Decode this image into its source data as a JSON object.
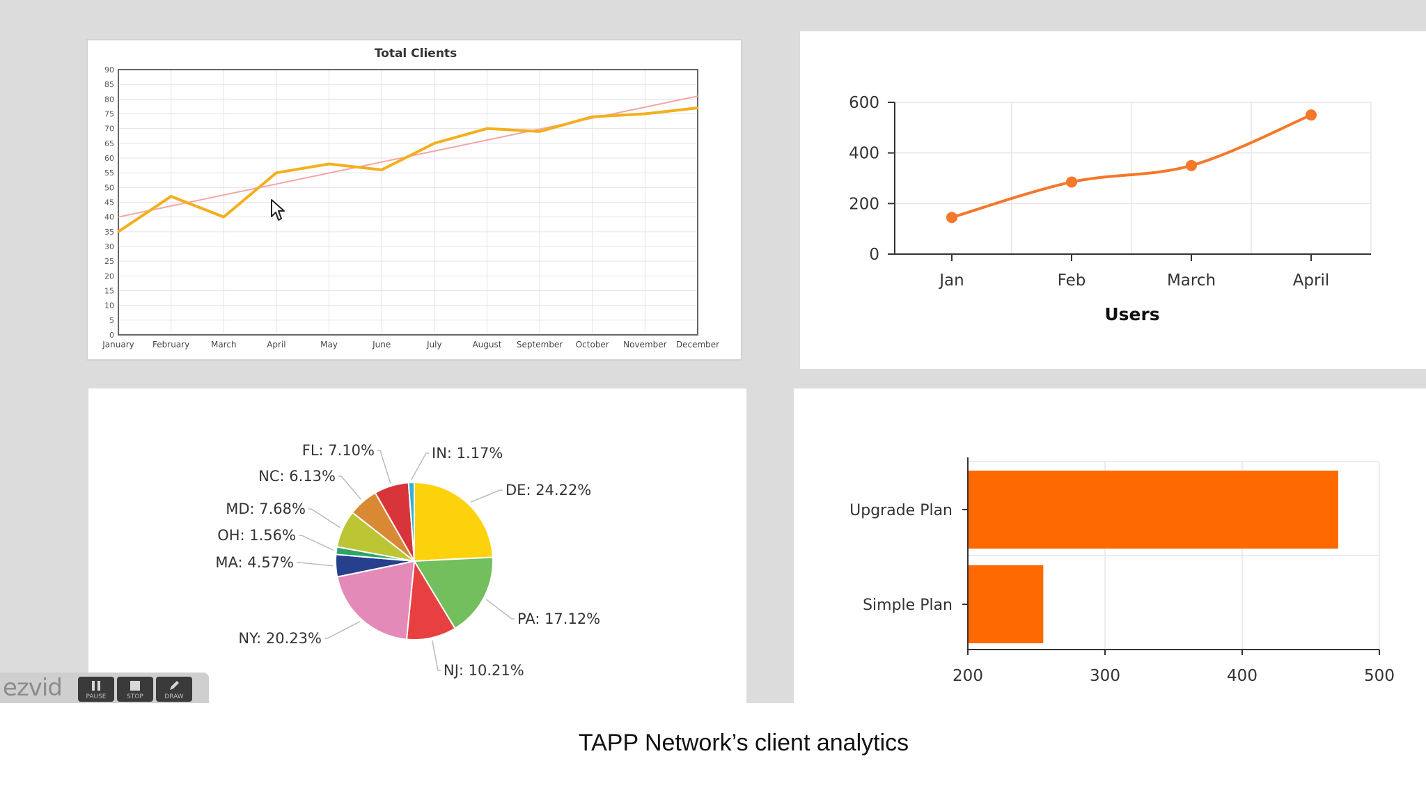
{
  "caption": "TAPP Network’s client analytics",
  "recorder": {
    "logo": "ezvid",
    "buttons": [
      "PAUSE",
      "STOP",
      "DRAW"
    ]
  },
  "colors": {
    "line_main": "#f2b01e",
    "trend": "#f4a6a6",
    "orange": "#ff6a00",
    "grid": "#e6e6e6"
  },
  "chart_data": [
    {
      "type": "line",
      "title": "Total Clients",
      "categories": [
        "January",
        "February",
        "March",
        "April",
        "May",
        "June",
        "July",
        "August",
        "September",
        "October",
        "November",
        "December"
      ],
      "series": [
        {
          "values": [
            35,
            47,
            40,
            55,
            58,
            56,
            65,
            70,
            69,
            74,
            75,
            77
          ]
        }
      ],
      "trendline": [
        40,
        81
      ],
      "ylim": [
        0,
        90
      ],
      "yticks": [
        0,
        5,
        10,
        15,
        20,
        25,
        30,
        35,
        40,
        45,
        50,
        55,
        60,
        65,
        70,
        75,
        80,
        85,
        90
      ],
      "grid": true
    },
    {
      "type": "line",
      "categories": [
        "Jan",
        "Feb",
        "March",
        "April"
      ],
      "series": [
        {
          "values": [
            145,
            285,
            350,
            550
          ]
        }
      ],
      "xlabel": "Users",
      "ylim": [
        0,
        600
      ],
      "yticks": [
        0,
        200,
        400,
        600
      ],
      "grid": true
    },
    {
      "type": "pie",
      "slices": [
        {
          "label": "DE: 24.22%",
          "value": 24.22,
          "color": "#fcd20c"
        },
        {
          "label": "PA: 17.12%",
          "value": 17.12,
          "color": "#73bf5e"
        },
        {
          "label": "NJ: 10.21%",
          "value": 10.21,
          "color": "#e84040"
        },
        {
          "label": "NY: 20.23%",
          "value": 20.23,
          "color": "#e38ab8"
        },
        {
          "label": "MA: 4.57%",
          "value": 4.57,
          "color": "#27408e"
        },
        {
          "label": "OH: 1.56%",
          "value": 1.56,
          "color": "#2fa36b"
        },
        {
          "label": "MD: 7.68%",
          "value": 7.68,
          "color": "#bcc534"
        },
        {
          "label": "NC: 6.13%",
          "value": 6.13,
          "color": "#d98934"
        },
        {
          "label": "FL: 7.10%",
          "value": 7.1,
          "color": "#d8353b"
        },
        {
          "label": "IN: 1.17%",
          "value": 1.17,
          "color": "#2db4d7"
        }
      ]
    },
    {
      "type": "bar",
      "orientation": "horizontal",
      "categories": [
        "Upgrade Plan",
        "Simple Plan"
      ],
      "values": [
        470,
        255
      ],
      "xlim": [
        200,
        500
      ],
      "xticks": [
        200,
        300,
        400,
        500
      ],
      "grid": true
    }
  ]
}
